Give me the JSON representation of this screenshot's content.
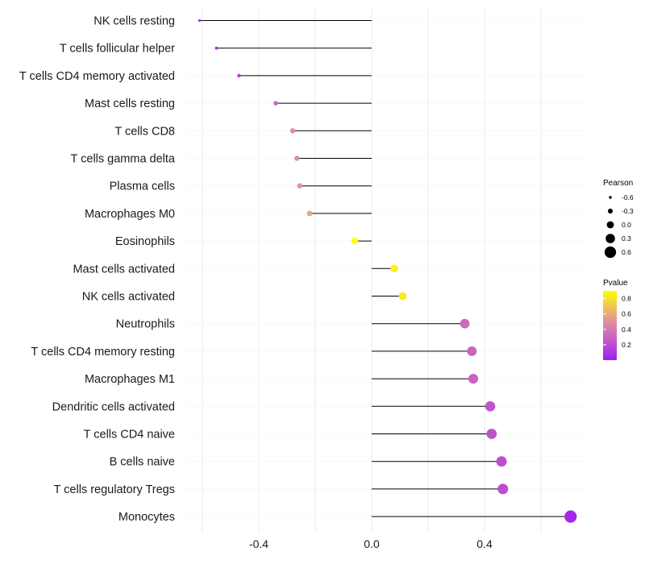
{
  "chart_data": {
    "type": "lollipop",
    "xlim": [
      -0.62,
      0.72
    ],
    "x_ticks": [
      {
        "value": -0.4,
        "label": "-0.4"
      },
      {
        "value": 0.0,
        "label": "0.0"
      },
      {
        "value": 0.4,
        "label": "0.4"
      }
    ],
    "grid": true,
    "categories": [
      {
        "name": "NK cells resting",
        "pearson": -0.61,
        "pvalue": 0.08
      },
      {
        "name": "T cells follicular helper",
        "pearson": -0.55,
        "pvalue": 0.1
      },
      {
        "name": "T cells CD4 memory activated",
        "pearson": -0.47,
        "pvalue": 0.15
      },
      {
        "name": "Mast cells resting",
        "pearson": -0.34,
        "pvalue": 0.35
      },
      {
        "name": "T cells CD8",
        "pearson": -0.28,
        "pvalue": 0.48
      },
      {
        "name": "T cells gamma delta",
        "pearson": -0.265,
        "pvalue": 0.5
      },
      {
        "name": "Plasma cells",
        "pearson": -0.255,
        "pvalue": 0.52
      },
      {
        "name": "Macrophages M0",
        "pearson": -0.22,
        "pvalue": 0.58
      },
      {
        "name": "Eosinophils",
        "pearson": -0.06,
        "pvalue": 0.9
      },
      {
        "name": "Mast cells activated",
        "pearson": 0.08,
        "pvalue": 0.85
      },
      {
        "name": "NK cells activated",
        "pearson": 0.11,
        "pvalue": 0.82
      },
      {
        "name": "Neutrophils",
        "pearson": 0.33,
        "pvalue": 0.34
      },
      {
        "name": "T cells CD4 memory resting",
        "pearson": 0.355,
        "pvalue": 0.31
      },
      {
        "name": "Macrophages M1",
        "pearson": 0.36,
        "pvalue": 0.3
      },
      {
        "name": "Dendritic cells activated",
        "pearson": 0.42,
        "pvalue": 0.24
      },
      {
        "name": "T cells CD4 naive",
        "pearson": 0.425,
        "pvalue": 0.23
      },
      {
        "name": "B cells naive",
        "pearson": 0.46,
        "pvalue": 0.21
      },
      {
        "name": "T cells regulatory  Tregs",
        "pearson": 0.465,
        "pvalue": 0.2
      },
      {
        "name": "Monocytes",
        "pearson": 0.705,
        "pvalue": 0.03
      }
    ],
    "size_legend": {
      "title": "Pearson",
      "entries": [
        {
          "value": -0.6,
          "label": "-0.6"
        },
        {
          "value": -0.3,
          "label": "-0.3"
        },
        {
          "value": 0.0,
          "label": "0.0"
        },
        {
          "value": 0.3,
          "label": "0.3"
        },
        {
          "value": 0.6,
          "label": "0.6"
        }
      ]
    },
    "color_legend": {
      "title": "Pvalue",
      "range": [
        0.0,
        0.9
      ],
      "ticks": [
        {
          "value": 0.2,
          "label": "0.2"
        },
        {
          "value": 0.4,
          "label": "0.4"
        },
        {
          "value": 0.6,
          "label": "0.6"
        },
        {
          "value": 0.8,
          "label": "0.8"
        }
      ],
      "low_color": "#a020f0",
      "mid_color": "#e08fa0",
      "high_color": "#ffff00"
    },
    "stem_color": "#000000",
    "grid_color": "#ebebeb"
  }
}
